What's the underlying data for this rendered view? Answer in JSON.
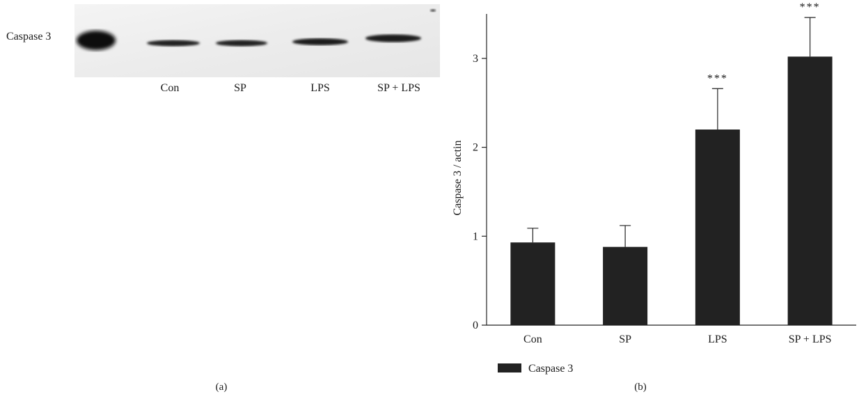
{
  "panel_a": {
    "row_label": "Caspase 3",
    "lanes": [
      "Con",
      "SP",
      "LPS",
      "SP + LPS"
    ],
    "label": "(a)"
  },
  "panel_b": {
    "label": "(b)"
  },
  "chart_data": {
    "type": "bar",
    "categories": [
      "Con",
      "SP",
      "LPS",
      "SP + LPS"
    ],
    "series": [
      {
        "name": "Caspase 3",
        "values": [
          0.93,
          0.88,
          2.2,
          3.02
        ],
        "errors": [
          0.16,
          0.24,
          0.46,
          0.44
        ],
        "significance": [
          "",
          "",
          "***",
          "***"
        ],
        "color": "#222222"
      }
    ],
    "xlabel": "",
    "ylabel": "Caspase 3 / actin",
    "ylim": [
      0,
      3.5
    ],
    "yticks": [
      0,
      1,
      2,
      3
    ],
    "grid": false,
    "legend": "bottom-left"
  }
}
